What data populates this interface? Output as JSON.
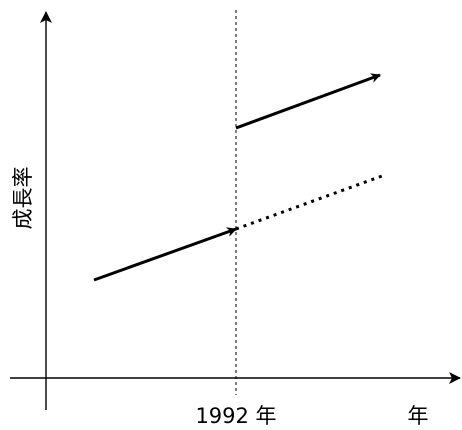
{
  "diagram": {
    "y_axis_label": "成長率",
    "x_axis_label": "年",
    "marker_label": "1992 年",
    "line_color": "#000000",
    "background": "#ffffff"
  }
}
